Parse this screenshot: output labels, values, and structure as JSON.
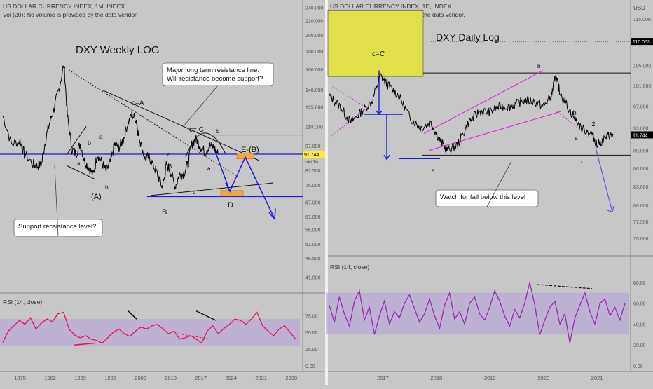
{
  "colors": {
    "background": "#c7c7c7",
    "price_line": "#000000",
    "rsi_left": "#e8174a",
    "rsi_right": "#9a2bb0",
    "rsi_band": "#b9a8d6",
    "wave_arrow": "#1a1ae0",
    "blue_level": "#1a1ae0",
    "magenta_channel": "#e81ae8",
    "target_box": "#f2a840",
    "yellow_box": "#e0e04a",
    "current_price_bg": "#000000",
    "current_price_left_bg": "#ffeb3b"
  },
  "chart_data": [
    {
      "type": "line",
      "panel": "left",
      "header_line1": "US DOLLAR CURRENCY INDEX, 1M, INDEX",
      "header_line2": "Vol (20): No volume is provided by the data vendor.",
      "title": "DXY  Weekly LOG",
      "y_scale": "log",
      "ylim": [
        38,
        245
      ],
      "y_ticks": [
        "240.000",
        "220.000",
        "200.000",
        "180.000",
        "160.000",
        "140.000",
        "125.000",
        "110.000",
        "97.000",
        "82.500",
        "75.000",
        "67.000",
        "61.000",
        "56.000",
        "51.000",
        "46.500",
        "41.000"
      ],
      "x_ticks": [
        "1975",
        "1982",
        "1989",
        "1996",
        "2003",
        "2010",
        "2017",
        "2024",
        "2031",
        "2038"
      ],
      "xlim": [
        1971,
        2040
      ],
      "current_price": "91.744",
      "countdown": "10d 7h",
      "series": [
        {
          "x": [
            1971,
            1973,
            1975,
            1976,
            1978,
            1979,
            1980,
            1981,
            1982,
            1983,
            1984,
            1985.2,
            1986,
            1987,
            1988,
            1989,
            1990,
            1991,
            1992,
            1993,
            1994,
            1995,
            1996,
            1997,
            1998,
            1999,
            2000,
            2001,
            2002,
            2002.5,
            2003,
            2004,
            2005,
            2006,
            2007,
            2008,
            2008.5,
            2009,
            2010,
            2011,
            2012,
            2013,
            2014,
            2015,
            2016,
            2017,
            2018,
            2019,
            2020,
            2021
          ],
          "y": [
            118,
            98,
            100,
            92,
            86,
            85,
            86,
            102,
            114,
            125,
            140,
            164,
            118,
            95,
            92,
            98,
            88,
            84,
            80,
            92,
            87,
            82,
            87,
            98,
            96,
            101,
            112,
            119,
            115,
            104,
            99,
            89,
            90,
            85,
            80,
            74,
            78,
            86,
            82,
            74,
            80,
            81,
            86,
            99,
            101,
            96,
            93,
            97,
            96,
            91.7
          ]
        }
      ],
      "annotations": [
        "Major long term resistance line.\nWill resistance become support?",
        "Support recsistance level?",
        "c=A",
        "c= C",
        "E-(B)",
        "(A)",
        "B",
        "D",
        "a",
        "b",
        "a",
        "b",
        "a",
        "b",
        "B",
        "b",
        "a",
        "b"
      ],
      "rsi": {
        "label": "RSI (14, close)",
        "ylim": [
          0,
          90
        ],
        "ticks": [
          "75.00",
          "50.00",
          "25.00",
          "0.00"
        ],
        "band": [
          30,
          70
        ],
        "values": [
          35,
          52,
          60,
          68,
          62,
          72,
          55,
          64,
          70,
          66,
          78,
          80,
          55,
          46,
          42,
          45,
          40,
          38,
          34,
          42,
          50,
          55,
          48,
          44,
          52,
          58,
          55,
          60,
          62,
          55,
          48,
          52,
          40,
          42,
          45,
          40,
          34,
          52,
          60,
          48,
          56,
          62,
          70,
          68,
          62,
          70,
          80,
          60,
          52,
          45,
          55,
          60,
          50,
          40
        ]
      }
    },
    {
      "type": "line",
      "panel": "right",
      "header_line1": "US DOLLAR CURRENCY INDEX, 1D, INDEX",
      "header_line2": "Vol (20): No volume is provided by the data vendor.",
      "title": "DXY Daily Log",
      "y_scale": "log",
      "ylim": [
        73,
        118
      ],
      "currency": "USD",
      "y_ticks": [
        "115.000",
        "105.000",
        "101.000",
        "97.000",
        "93.000",
        "89.000",
        "86.000",
        "83.000",
        "80.000",
        "77.500",
        "75.000"
      ],
      "x_ticks": [
        "2017",
        "2018",
        "2019",
        "2020",
        "2021"
      ],
      "xlim": [
        2016.0,
        2021.6
      ],
      "reference_level": "110.053",
      "current_price": "91.744",
      "series": [
        {
          "x": [
            2016.0,
            2016.2,
            2016.4,
            2016.6,
            2016.8,
            2016.95,
            2017.1,
            2017.3,
            2017.5,
            2017.7,
            2017.9,
            2018.05,
            2018.2,
            2018.4,
            2018.6,
            2018.8,
            2019.0,
            2019.2,
            2019.4,
            2019.6,
            2019.8,
            2020.0,
            2020.15,
            2020.22,
            2020.3,
            2020.5,
            2020.7,
            2020.9,
            2021.0,
            2021.2,
            2021.3
          ],
          "y": [
            99,
            97,
            94,
            96,
            98,
            103,
            101,
            99,
            95,
            93,
            94,
            91,
            89,
            90,
            94,
            96,
            96,
            97,
            97,
            98,
            98,
            97,
            99,
            103,
            100,
            96,
            93,
            92,
            90,
            91.5,
            91.7
          ]
        }
      ],
      "annotations": [
        "c=C",
        "Watch for fall below this level",
        "a",
        "b",
        "a",
        ".b",
        ".1",
        ".2"
      ],
      "rsi": {
        "label": "RSI (14, close)",
        "ylim": [
          0,
          90
        ],
        "ticks": [
          "80.00",
          "60.00",
          "40.00",
          "20.00",
          "0.00"
        ],
        "band": [
          30,
          70
        ],
        "values": [
          58,
          42,
          66,
          50,
          38,
          62,
          72,
          44,
          56,
          30,
          48,
          62,
          40,
          52,
          46,
          60,
          68,
          55,
          42,
          50,
          64,
          48,
          36,
          58,
          70,
          45,
          52,
          40,
          60,
          66,
          50,
          44,
          56,
          72,
          62,
          48,
          38,
          54,
          46,
          60,
          80,
          58,
          30,
          44,
          56,
          62,
          40,
          50,
          22,
          46,
          58,
          70,
          52,
          40,
          60,
          64,
          48,
          56,
          44,
          60
        ]
      }
    }
  ]
}
